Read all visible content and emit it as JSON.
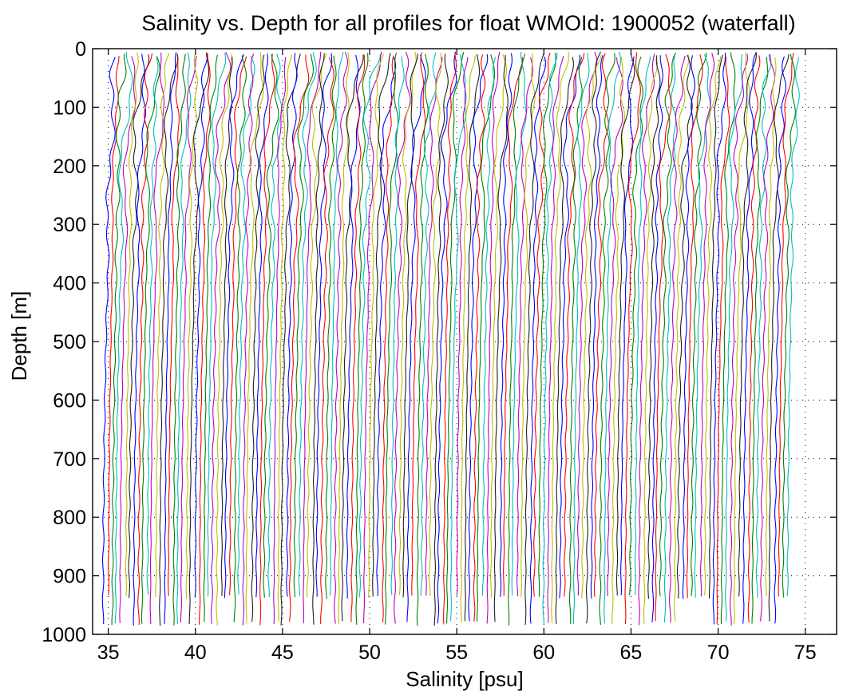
{
  "chart_data": {
    "type": "line",
    "title": "Salinity vs. Depth for all profiles for float WMOId: 1900052 (waterfall)",
    "xlabel": "Salinity [psu]",
    "ylabel": "Depth [m]",
    "xlim": [
      34.1,
      76.8
    ],
    "ylim": [
      0,
      1000
    ],
    "y_reversed": true,
    "grid": true,
    "xticks": [
      35,
      40,
      45,
      50,
      55,
      60,
      65,
      70,
      75
    ],
    "yticks": [
      0,
      100,
      200,
      300,
      400,
      500,
      600,
      700,
      800,
      900,
      1000
    ],
    "series_colors": [
      "#0000ff",
      "#ff0000",
      "#008000",
      "#00bfbf",
      "#bf00bf",
      "#bfbf00",
      "#202020"
    ],
    "profiles": {
      "count": 158,
      "waterfall_offset_psu": 0.25,
      "first_profile_surface_x": 35.0,
      "depth_profile": [
        [
          0,
          0.45
        ],
        [
          25,
          0.42
        ],
        [
          50,
          0.35
        ],
        [
          100,
          0.22
        ],
        [
          150,
          0.12
        ],
        [
          200,
          0.05
        ],
        [
          250,
          0.03
        ],
        [
          300,
          0.0
        ],
        [
          400,
          -0.05
        ],
        [
          500,
          -0.12
        ],
        [
          600,
          -0.18
        ],
        [
          700,
          -0.22
        ],
        [
          800,
          -0.25
        ],
        [
          900,
          -0.27
        ],
        [
          1000,
          -0.28
        ]
      ],
      "bottom_depth_values": [
        940,
        985
      ],
      "top_depth_values": [
        5,
        15
      ]
    }
  }
}
